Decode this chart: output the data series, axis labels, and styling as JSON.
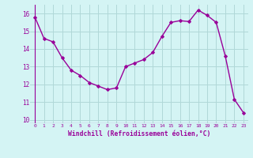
{
  "x": [
    0,
    1,
    2,
    3,
    4,
    5,
    6,
    7,
    8,
    9,
    10,
    11,
    12,
    13,
    14,
    15,
    16,
    17,
    18,
    19,
    20,
    21,
    22,
    23
  ],
  "y": [
    15.8,
    14.6,
    14.4,
    13.5,
    12.8,
    12.5,
    12.1,
    11.9,
    11.7,
    11.8,
    13.0,
    13.2,
    13.4,
    13.8,
    14.7,
    15.5,
    15.6,
    15.55,
    16.2,
    15.9,
    15.5,
    13.6,
    11.15,
    10.4
  ],
  "line_color": "#990099",
  "marker": "D",
  "marker_size": 2.0,
  "bg_color": "#d4f4f4",
  "grid_color": "#b0d8d8",
  "xlabel": "Windchill (Refroidissement éolien,°C)",
  "xlabel_color": "#990099",
  "tick_color": "#990099",
  "xlim": [
    -0.5,
    23.5
  ],
  "ylim": [
    9.8,
    16.5
  ],
  "yticks": [
    10,
    11,
    12,
    13,
    14,
    15,
    16
  ],
  "xticks": [
    0,
    1,
    2,
    3,
    4,
    5,
    6,
    7,
    8,
    9,
    10,
    11,
    12,
    13,
    14,
    15,
    16,
    17,
    18,
    19,
    20,
    21,
    22,
    23
  ],
  "line_width": 1.0,
  "marker_color": "#990099"
}
